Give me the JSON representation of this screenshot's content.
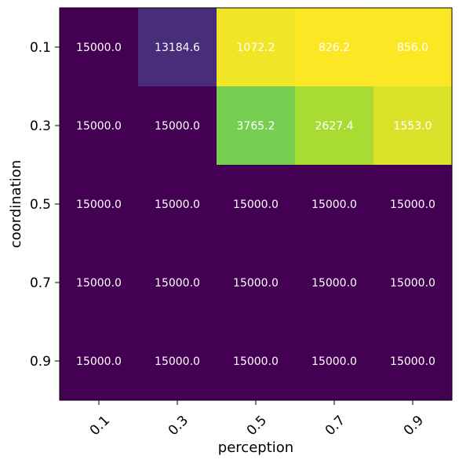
{
  "chart_data": {
    "type": "heatmap",
    "title": "",
    "xlabel": "perception",
    "ylabel": "coordination",
    "x_categories": [
      "0.1",
      "0.3",
      "0.5",
      "0.7",
      "0.9"
    ],
    "y_categories": [
      "0.1",
      "0.3",
      "0.5",
      "0.7",
      "0.9"
    ],
    "values": [
      [
        15000.0,
        13184.6,
        1072.2,
        826.2,
        856.0
      ],
      [
        15000.0,
        15000.0,
        3765.2,
        2627.4,
        1553.0
      ],
      [
        15000.0,
        15000.0,
        15000.0,
        15000.0,
        15000.0
      ],
      [
        15000.0,
        15000.0,
        15000.0,
        15000.0,
        15000.0
      ],
      [
        15000.0,
        15000.0,
        15000.0,
        15000.0,
        15000.0
      ]
    ],
    "labels": [
      [
        "15000.0",
        "13184.6",
        "1072.2",
        "826.2",
        "856.0"
      ],
      [
        "15000.0",
        "15000.0",
        "3765.2",
        "2627.4",
        "1553.0"
      ],
      [
        "15000.0",
        "15000.0",
        "15000.0",
        "15000.0",
        "15000.0"
      ],
      [
        "15000.0",
        "15000.0",
        "15000.0",
        "15000.0",
        "15000.0"
      ],
      [
        "15000.0",
        "15000.0",
        "15000.0",
        "15000.0",
        "15000.0"
      ]
    ],
    "colormap": "viridis_r",
    "grid": false,
    "legend": "none"
  }
}
